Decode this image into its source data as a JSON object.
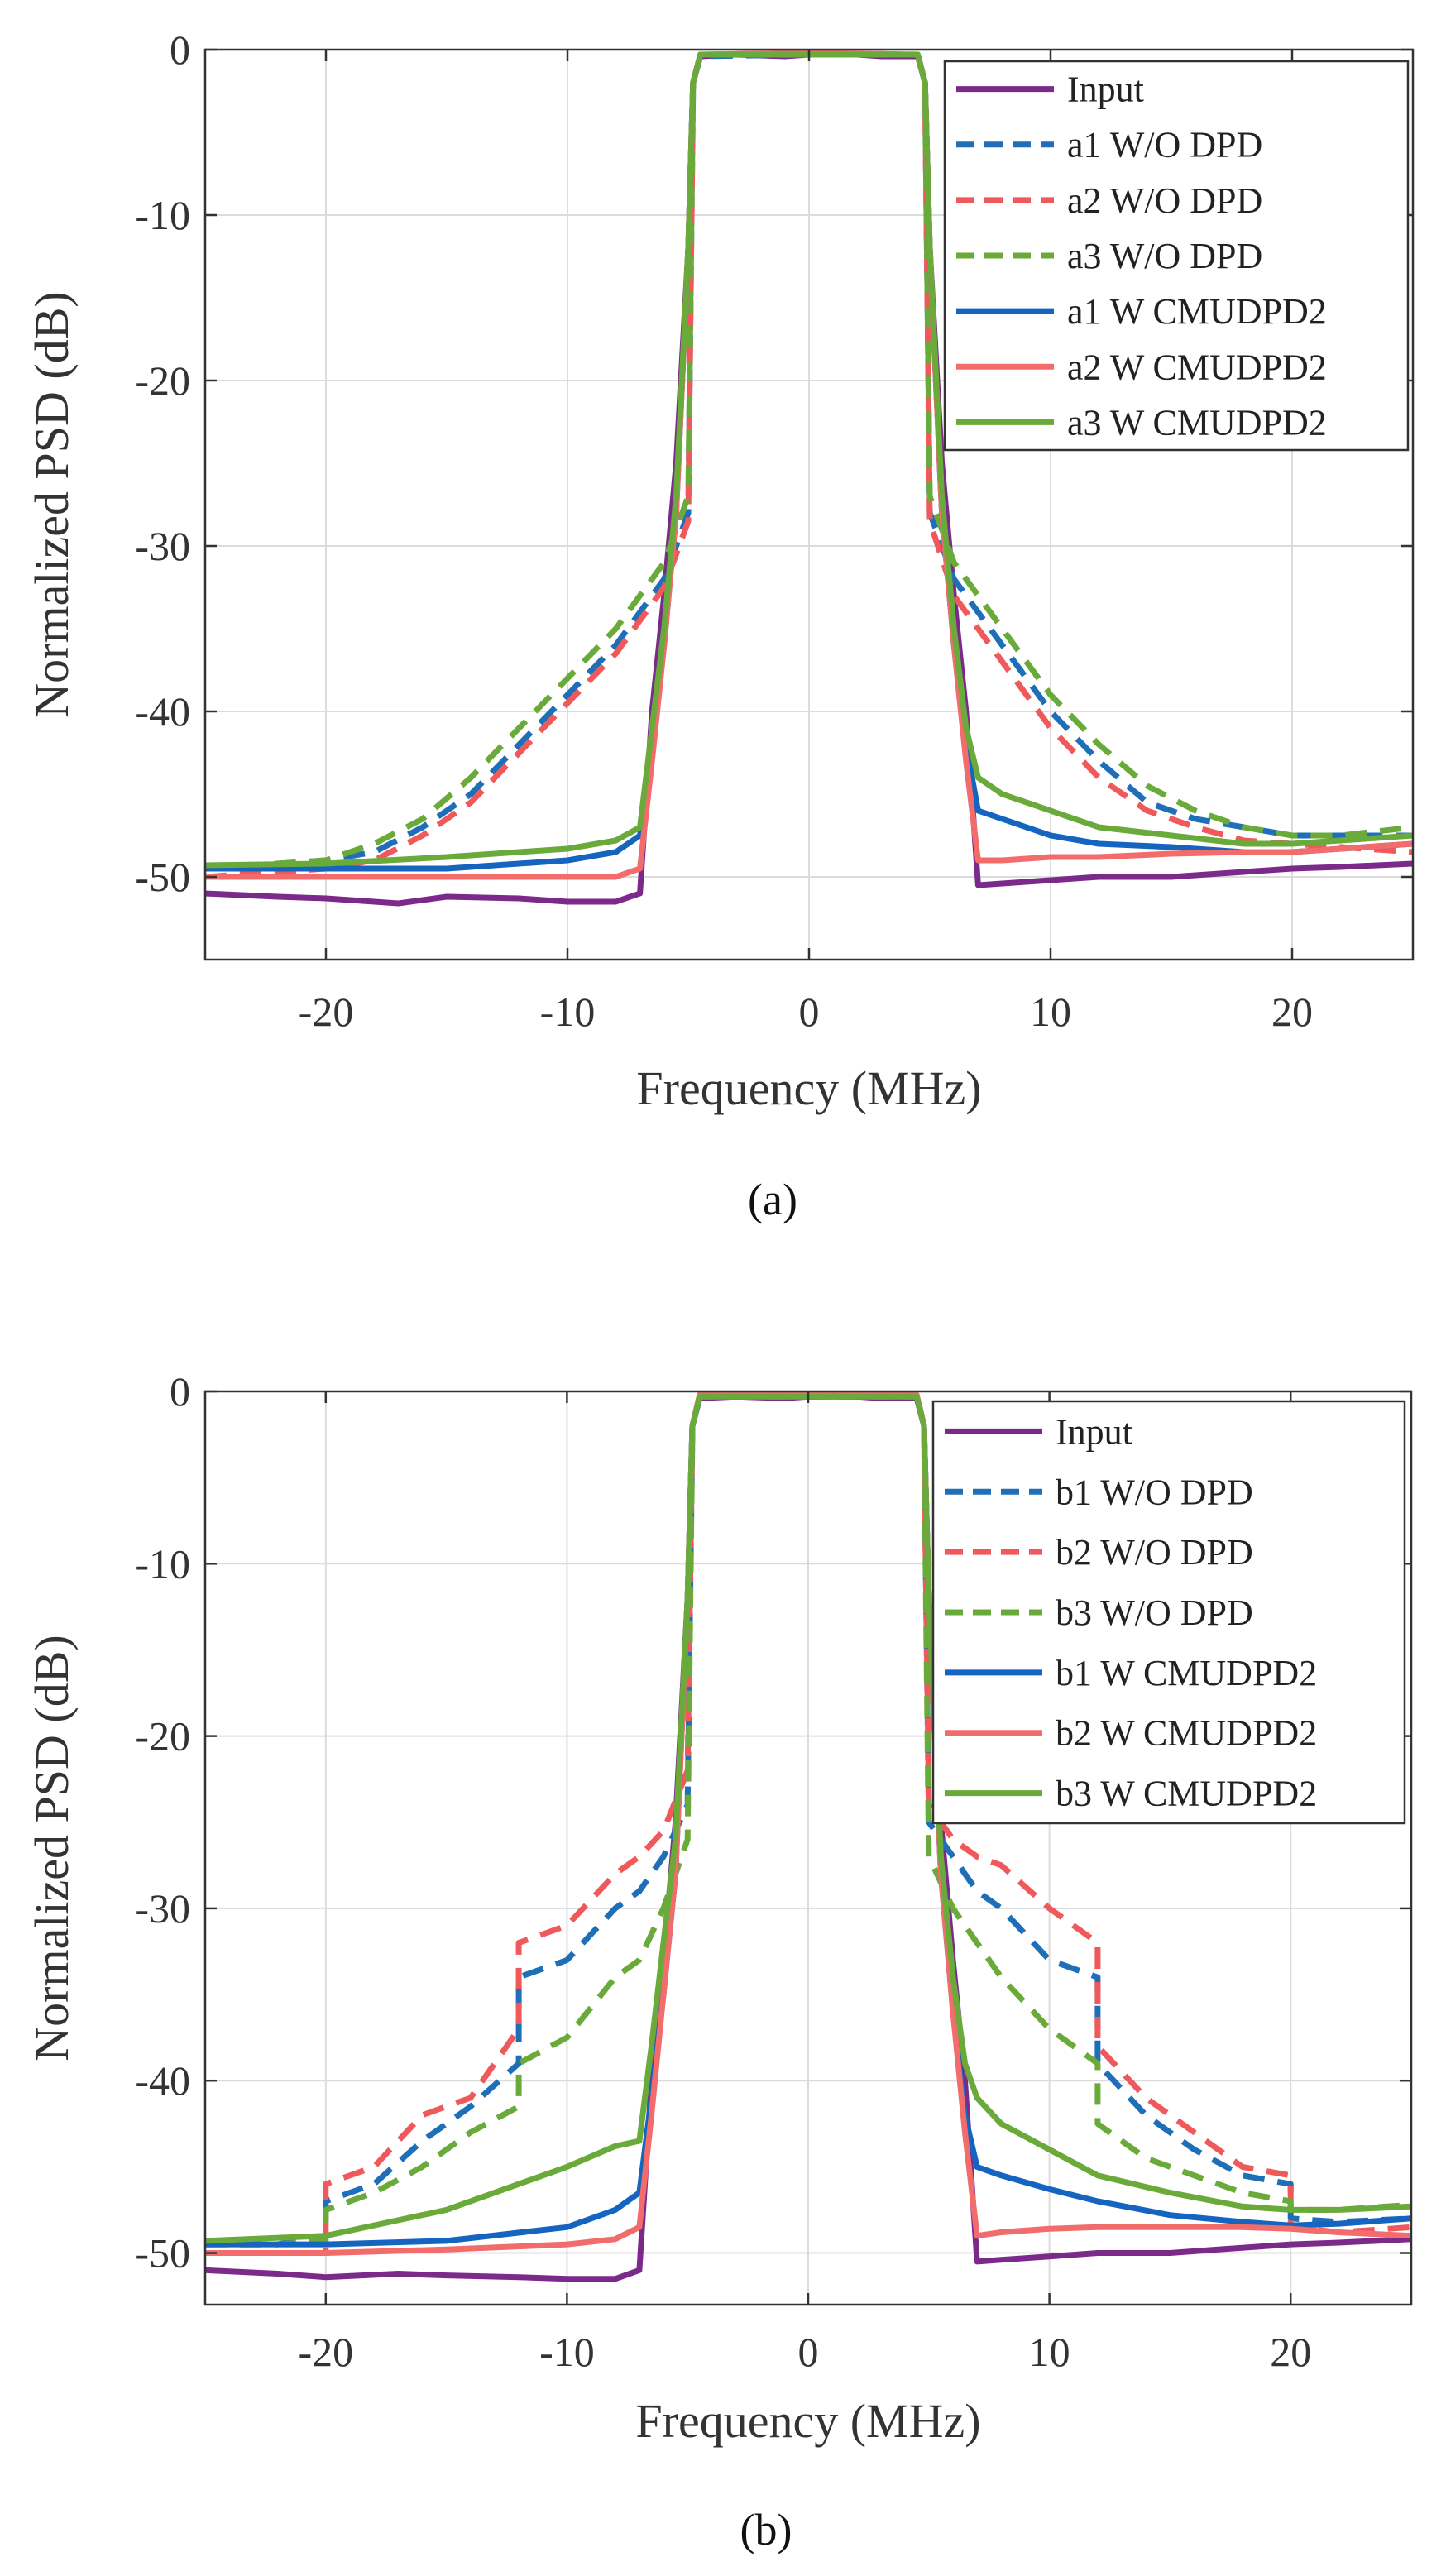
{
  "chart_data": [
    {
      "type": "line",
      "caption": "(a)",
      "xlabel": "Frequency (MHz)",
      "ylabel": "Normalized PSD (dB)",
      "xlim": [
        -25,
        25
      ],
      "ylim": [
        -55,
        0
      ],
      "xticks": [
        -20,
        -10,
        0,
        10,
        20
      ],
      "yticks": [
        0,
        -10,
        -20,
        -30,
        -40,
        -50
      ],
      "grid": true,
      "legend_position": "top-right",
      "series": [
        {
          "name": "Input",
          "color": "#7B2A8C",
          "dash": "solid",
          "x": [
            -25,
            -22,
            -20,
            -17,
            -15,
            -12,
            -10,
            -8,
            -7,
            -6.5,
            -6,
            -5.5,
            -5,
            -4.8,
            -4.5,
            -3,
            -1,
            0,
            1,
            3,
            4.5,
            4.8,
            5,
            5.5,
            6,
            6.5,
            7,
            8,
            10,
            12,
            15,
            17,
            20,
            22,
            25
          ],
          "y": [
            -51,
            -51.2,
            -51.3,
            -51.6,
            -51.2,
            -51.3,
            -51.5,
            -51.5,
            -51,
            -40,
            -33,
            -25,
            -12,
            -2,
            -0.4,
            -0.3,
            -0.4,
            -0.3,
            -0.2,
            -0.4,
            -0.4,
            -2,
            -12,
            -25,
            -33,
            -40,
            -50.5,
            -50.4,
            -50.2,
            -50,
            -50,
            -49.8,
            -49.5,
            -49.4,
            -49.2
          ]
        },
        {
          "name": "a1 W/O DPD",
          "color": "#1E6FB8",
          "dash": "dash",
          "x": [
            -25,
            -20,
            -18,
            -16,
            -14,
            -12,
            -10,
            -8,
            -6,
            -5,
            -4.8,
            -4.5,
            0,
            4.5,
            4.8,
            5,
            6,
            8,
            10,
            12,
            14,
            16,
            18,
            20,
            22,
            25
          ],
          "y": [
            -49.5,
            -49,
            -48.5,
            -47,
            -45,
            -42,
            -39,
            -36,
            -32,
            -28,
            -2,
            -0.4,
            -0.3,
            -0.3,
            -2,
            -28,
            -32,
            -36,
            -40,
            -43,
            -45.5,
            -46.5,
            -47,
            -47.5,
            -47.5,
            -47.5
          ]
        },
        {
          "name": "a2 W/O DPD",
          "color": "#F0595B",
          "dash": "dash",
          "x": [
            -25,
            -20,
            -18,
            -16,
            -14,
            -12,
            -10,
            -8,
            -6,
            -5,
            -4.8,
            -4.5,
            0,
            4.5,
            4.8,
            5,
            6,
            8,
            10,
            12,
            14,
            16,
            18,
            20,
            22,
            25
          ],
          "y": [
            -50,
            -49.5,
            -49,
            -47.5,
            -45.5,
            -42.5,
            -39.5,
            -36.5,
            -32.5,
            -28.5,
            -2,
            -0.3,
            -0.2,
            -0.3,
            -2,
            -28.5,
            -33,
            -37,
            -41,
            -44,
            -46,
            -47,
            -47.8,
            -48,
            -48.2,
            -48.5
          ]
        },
        {
          "name": "a3 W/O DPD",
          "color": "#6AAA3A",
          "dash": "dash",
          "x": [
            -25,
            -20,
            -18,
            -16,
            -14,
            -12,
            -10,
            -8,
            -6,
            -5,
            -4.8,
            -4.5,
            0,
            4.5,
            4.8,
            5,
            6,
            8,
            10,
            12,
            14,
            16,
            18,
            20,
            22,
            25
          ],
          "y": [
            -49.5,
            -49,
            -48,
            -46.5,
            -44,
            -41,
            -38,
            -35,
            -31,
            -27,
            -2,
            -0.3,
            -0.3,
            -0.3,
            -2,
            -27,
            -31,
            -35,
            -39,
            -42,
            -44.5,
            -46,
            -47,
            -47.5,
            -47.5,
            -47
          ]
        },
        {
          "name": "a1 W CMUDPD2",
          "color": "#1565C0",
          "dash": "solid",
          "x": [
            -25,
            -20,
            -15,
            -10,
            -8,
            -7,
            -6.5,
            -6,
            -5.5,
            -5,
            -4.8,
            -4.5,
            0,
            4.5,
            4.8,
            5,
            5.5,
            6,
            6.5,
            7,
            8,
            10,
            12,
            15,
            18,
            20,
            22,
            25
          ],
          "y": [
            -49.5,
            -49.5,
            -49.5,
            -49,
            -48.5,
            -47.5,
            -42,
            -36,
            -28,
            -12,
            -2,
            -0.3,
            -0.3,
            -0.3,
            -2,
            -12,
            -28,
            -36,
            -42,
            -46,
            -46.5,
            -47.5,
            -48,
            -48.2,
            -48.5,
            -48.5,
            -48.3,
            -48
          ]
        },
        {
          "name": "a2 W CMUDPD2",
          "color": "#F26C6C",
          "dash": "solid",
          "x": [
            -25,
            -20,
            -15,
            -10,
            -8,
            -7,
            -6.5,
            -6,
            -5.5,
            -5,
            -4.8,
            -4.5,
            0,
            4.5,
            4.8,
            5,
            5.5,
            6,
            6.5,
            7,
            8,
            10,
            12,
            15,
            18,
            20,
            22,
            25
          ],
          "y": [
            -50,
            -50,
            -50,
            -50,
            -50,
            -49.5,
            -43,
            -36,
            -28,
            -12,
            -2,
            -0.3,
            -0.2,
            -0.3,
            -2,
            -12,
            -28,
            -36,
            -43,
            -49,
            -49,
            -48.8,
            -48.8,
            -48.6,
            -48.5,
            -48.5,
            -48.3,
            -48
          ]
        },
        {
          "name": "a3 W CMUDPD2",
          "color": "#6AAA3A",
          "dash": "solid",
          "x": [
            -25,
            -20,
            -15,
            -10,
            -8,
            -7,
            -6.5,
            -6,
            -5.5,
            -5,
            -4.8,
            -4.5,
            0,
            4.5,
            4.8,
            5,
            5.5,
            6,
            6.5,
            7,
            8,
            10,
            12,
            15,
            18,
            20,
            22,
            25
          ],
          "y": [
            -49.3,
            -49.2,
            -48.8,
            -48.3,
            -47.8,
            -47,
            -41,
            -35,
            -27,
            -12,
            -2,
            -0.3,
            -0.3,
            -0.3,
            -2,
            -12,
            -27,
            -35,
            -41,
            -44,
            -45,
            -46,
            -47,
            -47.5,
            -48,
            -48,
            -47.8,
            -47.5
          ]
        }
      ]
    },
    {
      "type": "line",
      "caption": "(b)",
      "xlabel": "Frequency (MHz)",
      "ylabel": "Normalized PSD (dB)",
      "xlim": [
        -25,
        25
      ],
      "ylim": [
        -53,
        0
      ],
      "xticks": [
        -20,
        -10,
        0,
        10,
        20
      ],
      "yticks": [
        0,
        -10,
        -20,
        -30,
        -40,
        -50
      ],
      "grid": true,
      "legend_position": "top-right",
      "series": [
        {
          "name": "Input",
          "color": "#7B2A8C",
          "dash": "solid",
          "x": [
            -25,
            -22,
            -20,
            -17,
            -15,
            -12,
            -10,
            -8,
            -7,
            -6.5,
            -6,
            -5.5,
            -5,
            -4.8,
            -4.5,
            -3,
            -1,
            0,
            1,
            3,
            4.5,
            4.8,
            5,
            5.5,
            6,
            6.5,
            7,
            8,
            10,
            12,
            15,
            17,
            20,
            22,
            25
          ],
          "y": [
            -51,
            -51.2,
            -51.4,
            -51.2,
            -51.3,
            -51.4,
            -51.5,
            -51.5,
            -51,
            -40,
            -33,
            -25,
            -12,
            -2,
            -0.4,
            -0.3,
            -0.4,
            -0.3,
            -0.2,
            -0.4,
            -0.4,
            -2,
            -12,
            -25,
            -33,
            -40,
            -50.5,
            -50.4,
            -50.2,
            -50,
            -50,
            -49.8,
            -49.5,
            -49.4,
            -49.2
          ]
        },
        {
          "name": "b1 W/O DPD",
          "color": "#1E6FB8",
          "dash": "dash",
          "x": [
            -25,
            -22,
            -20,
            -20,
            -18,
            -16,
            -14,
            -12,
            -12,
            -10,
            -8,
            -7,
            -6,
            -5,
            -4.8,
            -4.5,
            0,
            4.5,
            4.8,
            5,
            6,
            7,
            8,
            10,
            12,
            12,
            14,
            16,
            18,
            20,
            20,
            22,
            25
          ],
          "y": [
            -49.5,
            -49.5,
            -49,
            -47,
            -46,
            -43.5,
            -41.5,
            -39,
            -34,
            -33,
            -30,
            -29,
            -27,
            -24,
            -2,
            -0.3,
            -0.3,
            -0.3,
            -2,
            -25,
            -27,
            -29,
            -30,
            -33,
            -34,
            -39,
            -42,
            -44,
            -45.5,
            -46,
            -48,
            -48.2,
            -48
          ]
        },
        {
          "name": "b2 W/O DPD",
          "color": "#F0595B",
          "dash": "dash",
          "x": [
            -25,
            -22,
            -20,
            -20,
            -18,
            -16,
            -14,
            -12,
            -12,
            -10,
            -8,
            -7,
            -6,
            -5,
            -4.8,
            -4.5,
            0,
            4.5,
            4.8,
            5,
            6,
            7,
            8,
            10,
            12,
            12,
            14,
            16,
            18,
            20,
            20,
            22,
            25
          ],
          "y": [
            -50,
            -50,
            -50,
            -46,
            -45,
            -42,
            -41,
            -37,
            -32,
            -31,
            -28,
            -27,
            -25.5,
            -22,
            -2,
            -0.2,
            -0.2,
            -0.2,
            -2,
            -24,
            -26,
            -27,
            -27.5,
            -30,
            -32,
            -38,
            -41,
            -43,
            -45,
            -45.5,
            -48.5,
            -48.8,
            -48.5
          ]
        },
        {
          "name": "b3 W/O DPD",
          "color": "#6AAA3A",
          "dash": "dash",
          "x": [
            -25,
            -22,
            -20,
            -20,
            -18,
            -16,
            -14,
            -12,
            -12,
            -10,
            -8,
            -7,
            -6,
            -5,
            -4.8,
            -4.5,
            0,
            4.5,
            4.8,
            5,
            6,
            7,
            8,
            10,
            12,
            12,
            14,
            16,
            18,
            20,
            20,
            22,
            25
          ],
          "y": [
            -49.5,
            -49.5,
            -49.3,
            -47.5,
            -46.5,
            -45,
            -43,
            -41.5,
            -39,
            -37.5,
            -34,
            -33,
            -30,
            -26,
            -2,
            -0.3,
            -0.3,
            -0.3,
            -2,
            -27,
            -30,
            -32,
            -34,
            -37,
            -39,
            -42.5,
            -44.5,
            -45.5,
            -46.5,
            -47,
            -47.5,
            -47.5,
            -47.2
          ]
        },
        {
          "name": "b1 W CMUDPD2",
          "color": "#1565C0",
          "dash": "solid",
          "x": [
            -25,
            -20,
            -15,
            -10,
            -8,
            -7,
            -6.5,
            -6,
            -5.5,
            -5,
            -4.8,
            -4.5,
            0,
            4.5,
            4.8,
            5,
            5.5,
            6,
            6.5,
            7,
            8,
            10,
            12,
            15,
            18,
            20,
            22,
            25
          ],
          "y": [
            -49.5,
            -49.5,
            -49.3,
            -48.5,
            -47.5,
            -46.5,
            -41,
            -35,
            -28,
            -12,
            -2,
            -0.3,
            -0.3,
            -0.3,
            -2,
            -12,
            -28,
            -36,
            -42,
            -45,
            -45.5,
            -46.3,
            -47,
            -47.8,
            -48.2,
            -48.4,
            -48.3,
            -48
          ]
        },
        {
          "name": "b2 W CMUDPD2",
          "color": "#F26C6C",
          "dash": "solid",
          "x": [
            -25,
            -20,
            -15,
            -10,
            -8,
            -7,
            -6.5,
            -6,
            -5.5,
            -5,
            -4.8,
            -4.5,
            0,
            4.5,
            4.8,
            5,
            5.5,
            6,
            6.5,
            7,
            8,
            10,
            12,
            15,
            18,
            20,
            22,
            25
          ],
          "y": [
            -50,
            -50,
            -49.8,
            -49.5,
            -49.2,
            -48.5,
            -42,
            -35,
            -28,
            -12,
            -2,
            -0.2,
            -0.2,
            -0.2,
            -2,
            -12,
            -28,
            -36,
            -43,
            -49,
            -48.8,
            -48.6,
            -48.5,
            -48.5,
            -48.5,
            -48.6,
            -48.8,
            -49
          ]
        },
        {
          "name": "b3 W CMUDPD2",
          "color": "#6AAA3A",
          "dash": "solid",
          "x": [
            -25,
            -20,
            -15,
            -10,
            -8,
            -7,
            -6.5,
            -6,
            -5.5,
            -5,
            -4.8,
            -4.5,
            0,
            4.5,
            4.8,
            5,
            5.5,
            6,
            6.5,
            7,
            8,
            10,
            12,
            15,
            18,
            20,
            22,
            25
          ],
          "y": [
            -49.3,
            -49,
            -47.5,
            -45,
            -43.8,
            -43.5,
            -38,
            -32,
            -26,
            -12,
            -2,
            -0.3,
            -0.3,
            -0.3,
            -2,
            -12,
            -27,
            -34,
            -39,
            -41,
            -42.5,
            -44,
            -45.5,
            -46.5,
            -47.3,
            -47.5,
            -47.5,
            -47.3
          ]
        }
      ]
    }
  ]
}
